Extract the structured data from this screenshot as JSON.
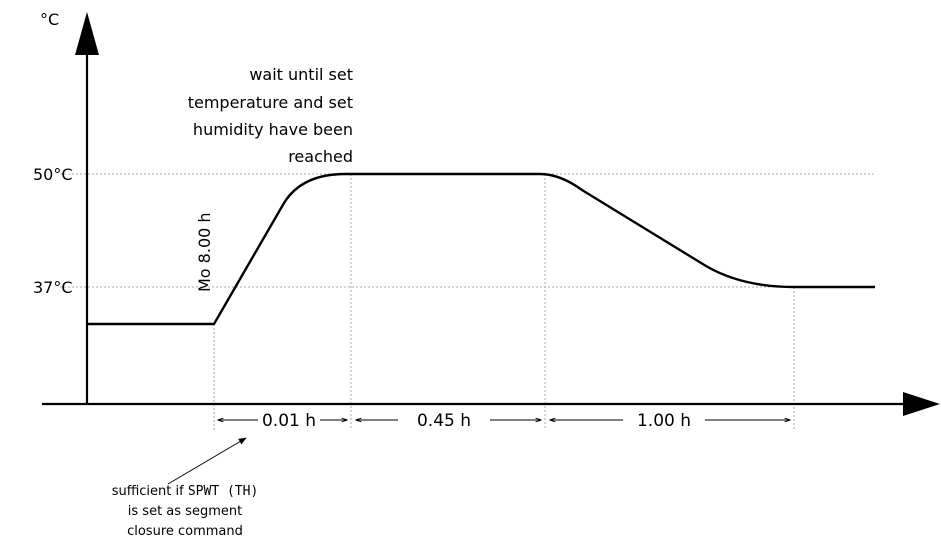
{
  "axis": {
    "y_unit": "°C"
  },
  "levels": {
    "high": "50°C",
    "low": "37°C"
  },
  "annotations": {
    "wait_lines": [
      "wait until set",
      "temperature and set",
      "humidity have been",
      "reached"
    ],
    "start_label": "Mo 8.00 h"
  },
  "durations": {
    "ramp": "0.01 h",
    "hold": "0.45 h",
    "cool": "1.00 h"
  },
  "footnote": {
    "line1_prefix": "sufficient if ",
    "line1_code": "SPWT (TH)",
    "line2": "is set as segment",
    "line3": "closure command"
  },
  "colors": {
    "line": "#000000",
    "grid": "#aaaaaa"
  }
}
